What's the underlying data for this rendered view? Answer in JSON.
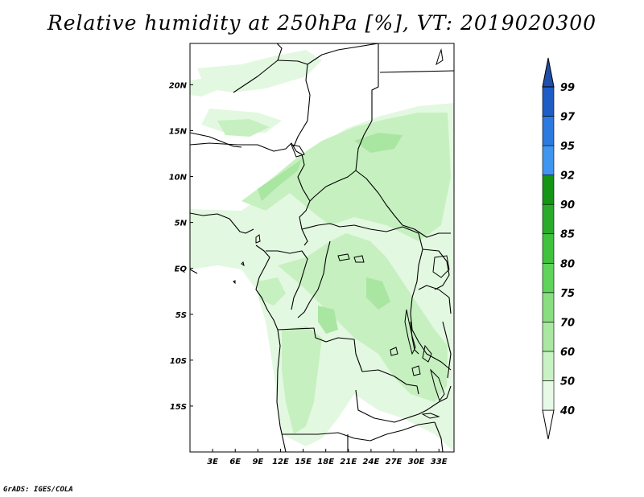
{
  "title": "Relative humidity at 250hPa [%], VT: 2019020300",
  "credit": "GrADS: IGES/COLA",
  "map": {
    "lon_range": [
      0,
      35
    ],
    "lat_range": [
      -20,
      24.5
    ],
    "lon_ticks": [
      {
        "lon": 3,
        "label": "3E"
      },
      {
        "lon": 6,
        "label": "6E"
      },
      {
        "lon": 9,
        "label": "9E"
      },
      {
        "lon": 12,
        "label": "12E"
      },
      {
        "lon": 15,
        "label": "15E"
      },
      {
        "lon": 18,
        "label": "18E"
      },
      {
        "lon": 21,
        "label": "21E"
      },
      {
        "lon": 24,
        "label": "24E"
      },
      {
        "lon": 27,
        "label": "27E"
      },
      {
        "lon": 30,
        "label": "30E"
      },
      {
        "lon": 33,
        "label": "33E"
      }
    ],
    "lat_ticks": [
      {
        "lat": 20,
        "label": "20N"
      },
      {
        "lat": 15,
        "label": "15N"
      },
      {
        "lat": 10,
        "label": "10N"
      },
      {
        "lat": 5,
        "label": "5N"
      },
      {
        "lat": 0,
        "label": "EQ"
      },
      {
        "lat": -5,
        "label": "5S"
      },
      {
        "lat": -10,
        "label": "10S"
      },
      {
        "lat": -15,
        "label": "15S"
      }
    ]
  },
  "colorbar": {
    "levels": [
      "40",
      "50",
      "60",
      "70",
      "75",
      "80",
      "85",
      "90",
      "92",
      "95",
      "97",
      "99"
    ],
    "colors": [
      "#ffffff",
      "#e6fae6",
      "#c8f2c3",
      "#a9e8a1",
      "#89de80",
      "#5fd35a",
      "#3fc23c",
      "#2aab2a",
      "#149614",
      "#3e96f0",
      "#2a7ae0",
      "#1e5cc8",
      "#1f4fa8"
    ]
  }
}
